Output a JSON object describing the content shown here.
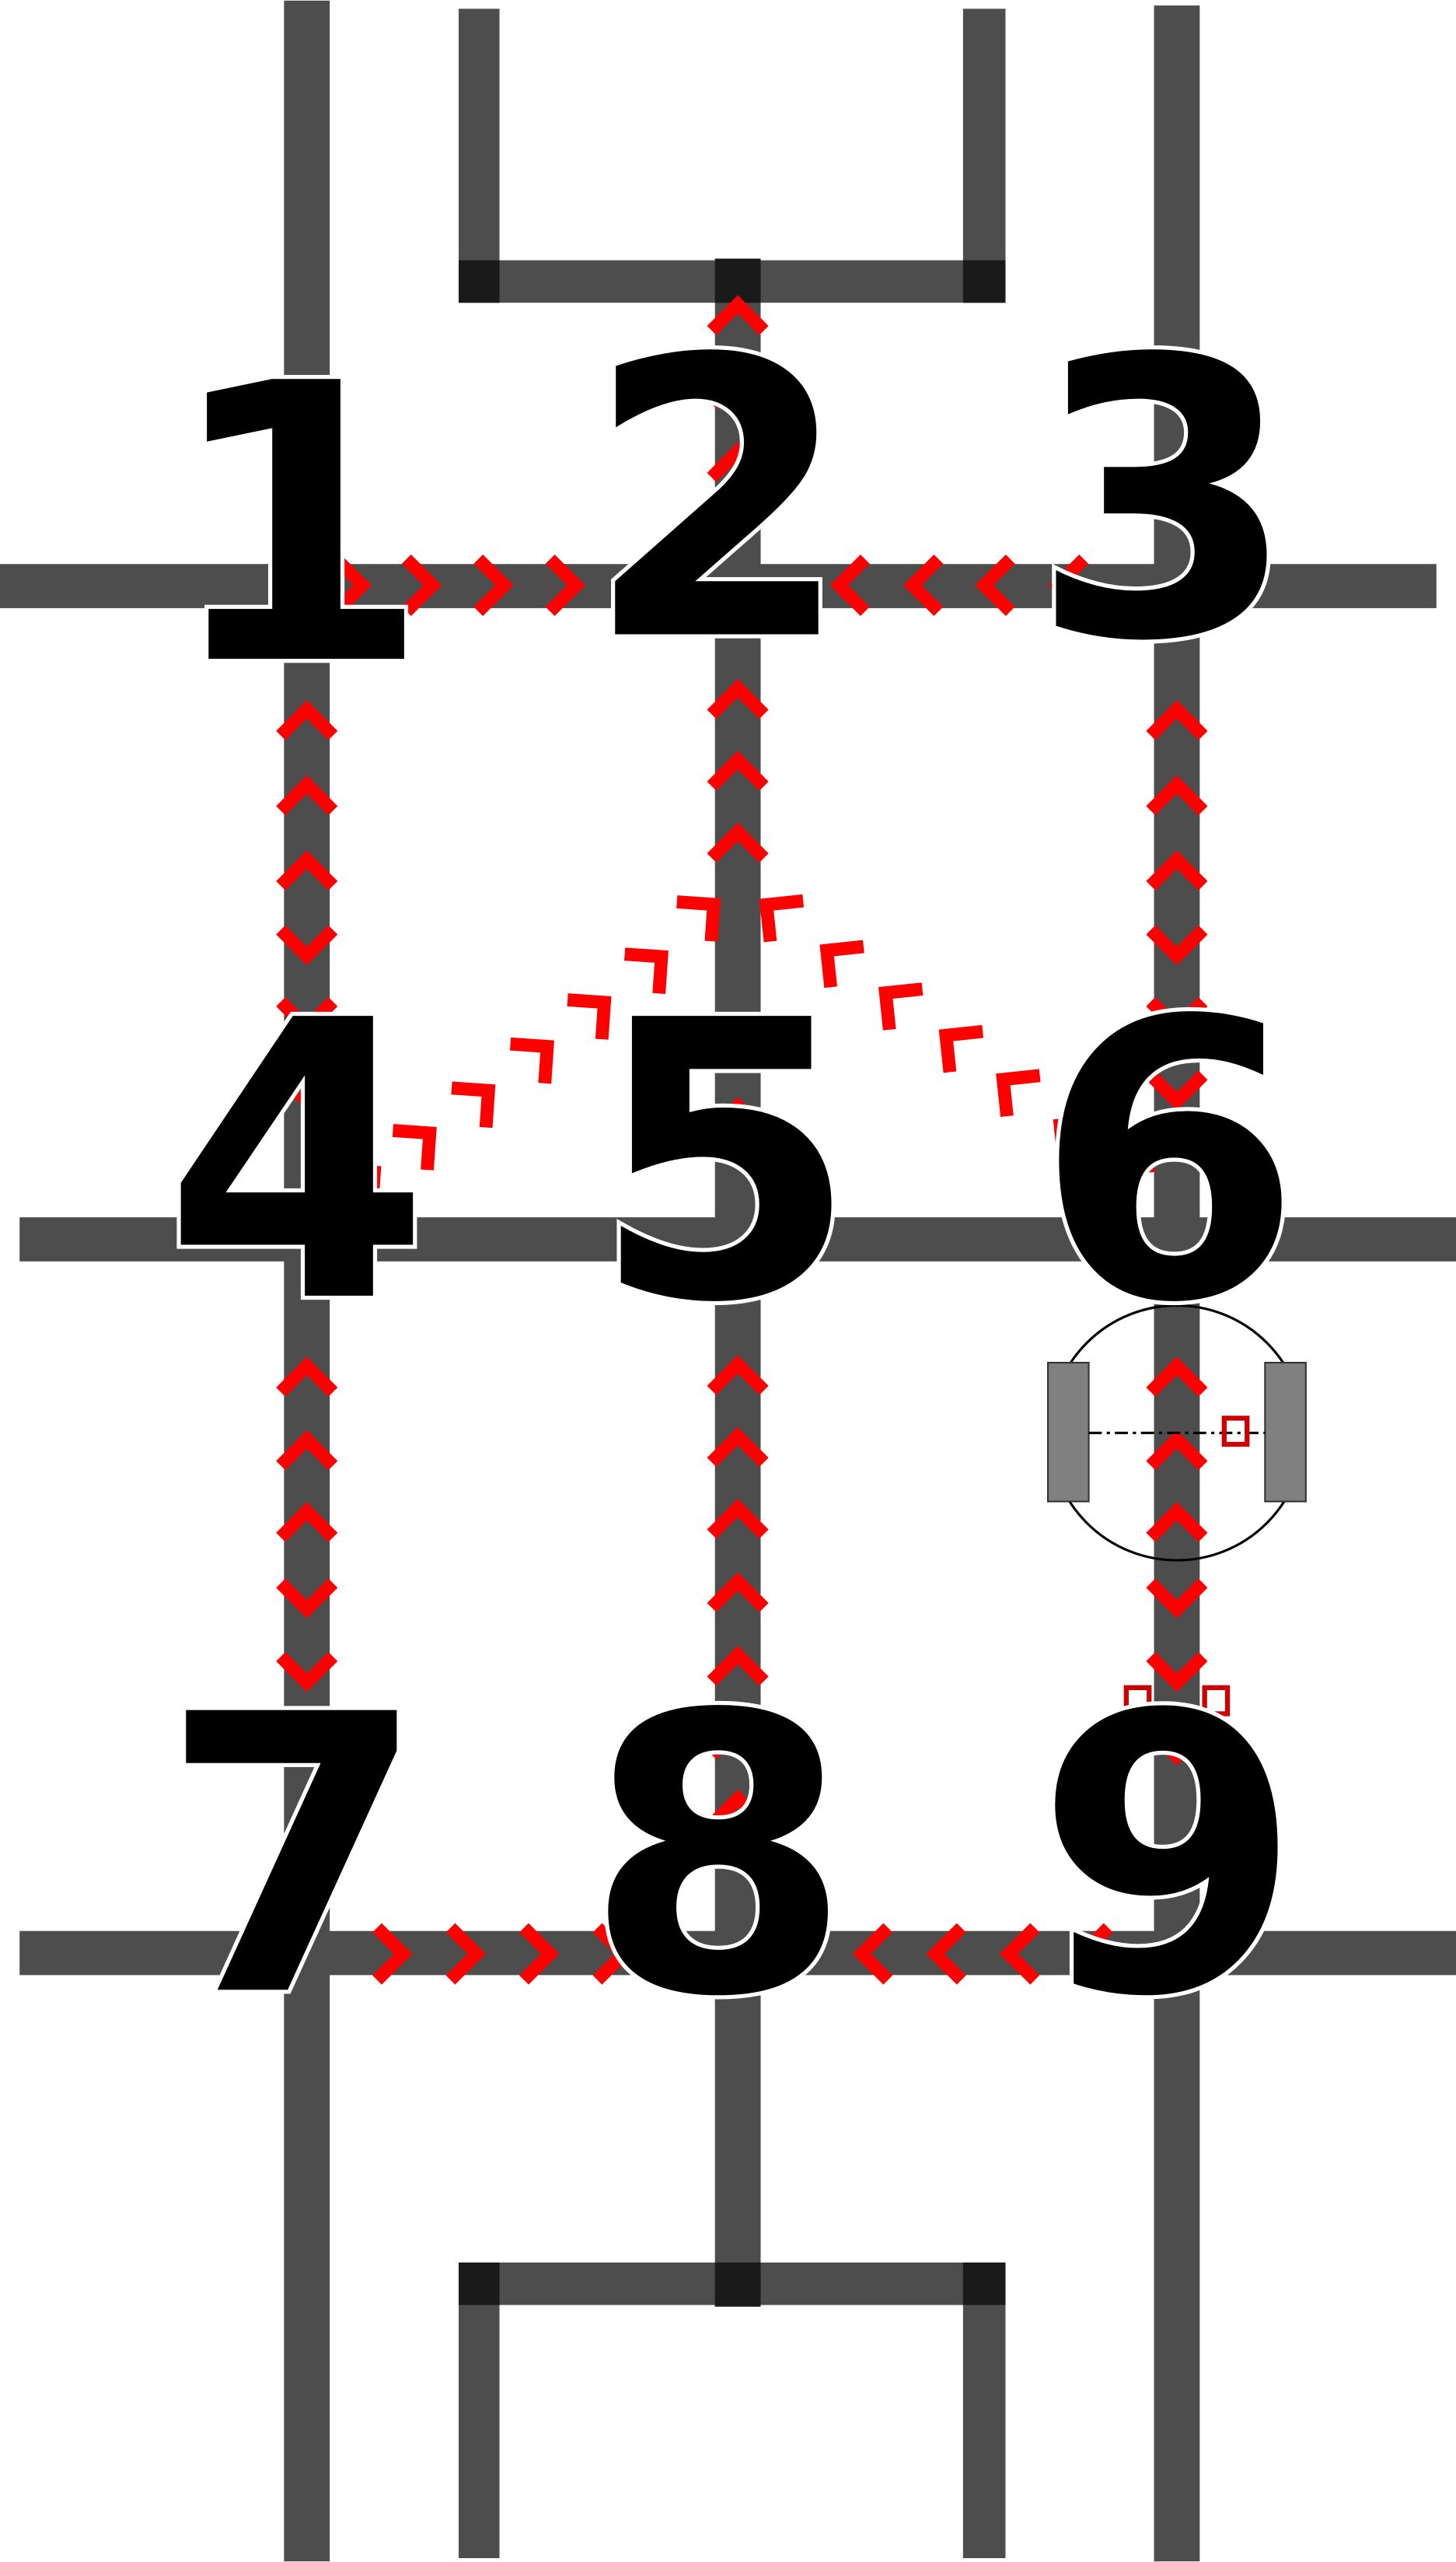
{
  "colors": {
    "track": "#4d4d4d",
    "track_joint": "#1a1a1a",
    "arrow": "#ff0000",
    "label": "#000000",
    "robot_wheel": "#808080",
    "robot_body_outline": "#000000",
    "robot_sensor": "#cc0000"
  },
  "nodes": [
    {
      "id": "1",
      "label": "1"
    },
    {
      "id": "2",
      "label": "2"
    },
    {
      "id": "3",
      "label": "3"
    },
    {
      "id": "4",
      "label": "4"
    },
    {
      "id": "5",
      "label": "5"
    },
    {
      "id": "6",
      "label": "6"
    },
    {
      "id": "7",
      "label": "7"
    },
    {
      "id": "8",
      "label": "8"
    },
    {
      "id": "9",
      "label": "9"
    }
  ],
  "edges": [
    {
      "from": "1",
      "to": "2",
      "direction": "toward-2"
    },
    {
      "from": "3",
      "to": "2",
      "direction": "toward-2"
    },
    {
      "from": "2",
      "to": "top-exit",
      "direction": "toward-top"
    },
    {
      "from": "1",
      "to": "4",
      "direction": "both"
    },
    {
      "from": "3",
      "to": "6",
      "direction": "both"
    },
    {
      "from": "5",
      "to": "2",
      "direction": "toward-2"
    },
    {
      "from": "4",
      "to": "2",
      "direction": "toward-2"
    },
    {
      "from": "6",
      "to": "2",
      "direction": "toward-2"
    },
    {
      "from": "4",
      "to": "7",
      "direction": "both"
    },
    {
      "from": "8",
      "to": "5",
      "direction": "toward-5"
    },
    {
      "from": "6",
      "to": "9",
      "direction": "both"
    },
    {
      "from": "7",
      "to": "8",
      "direction": "toward-8"
    },
    {
      "from": "9",
      "to": "8",
      "direction": "toward-8"
    }
  ],
  "robot": {
    "position": "between-6-and-9",
    "icon": "robot-icon"
  }
}
